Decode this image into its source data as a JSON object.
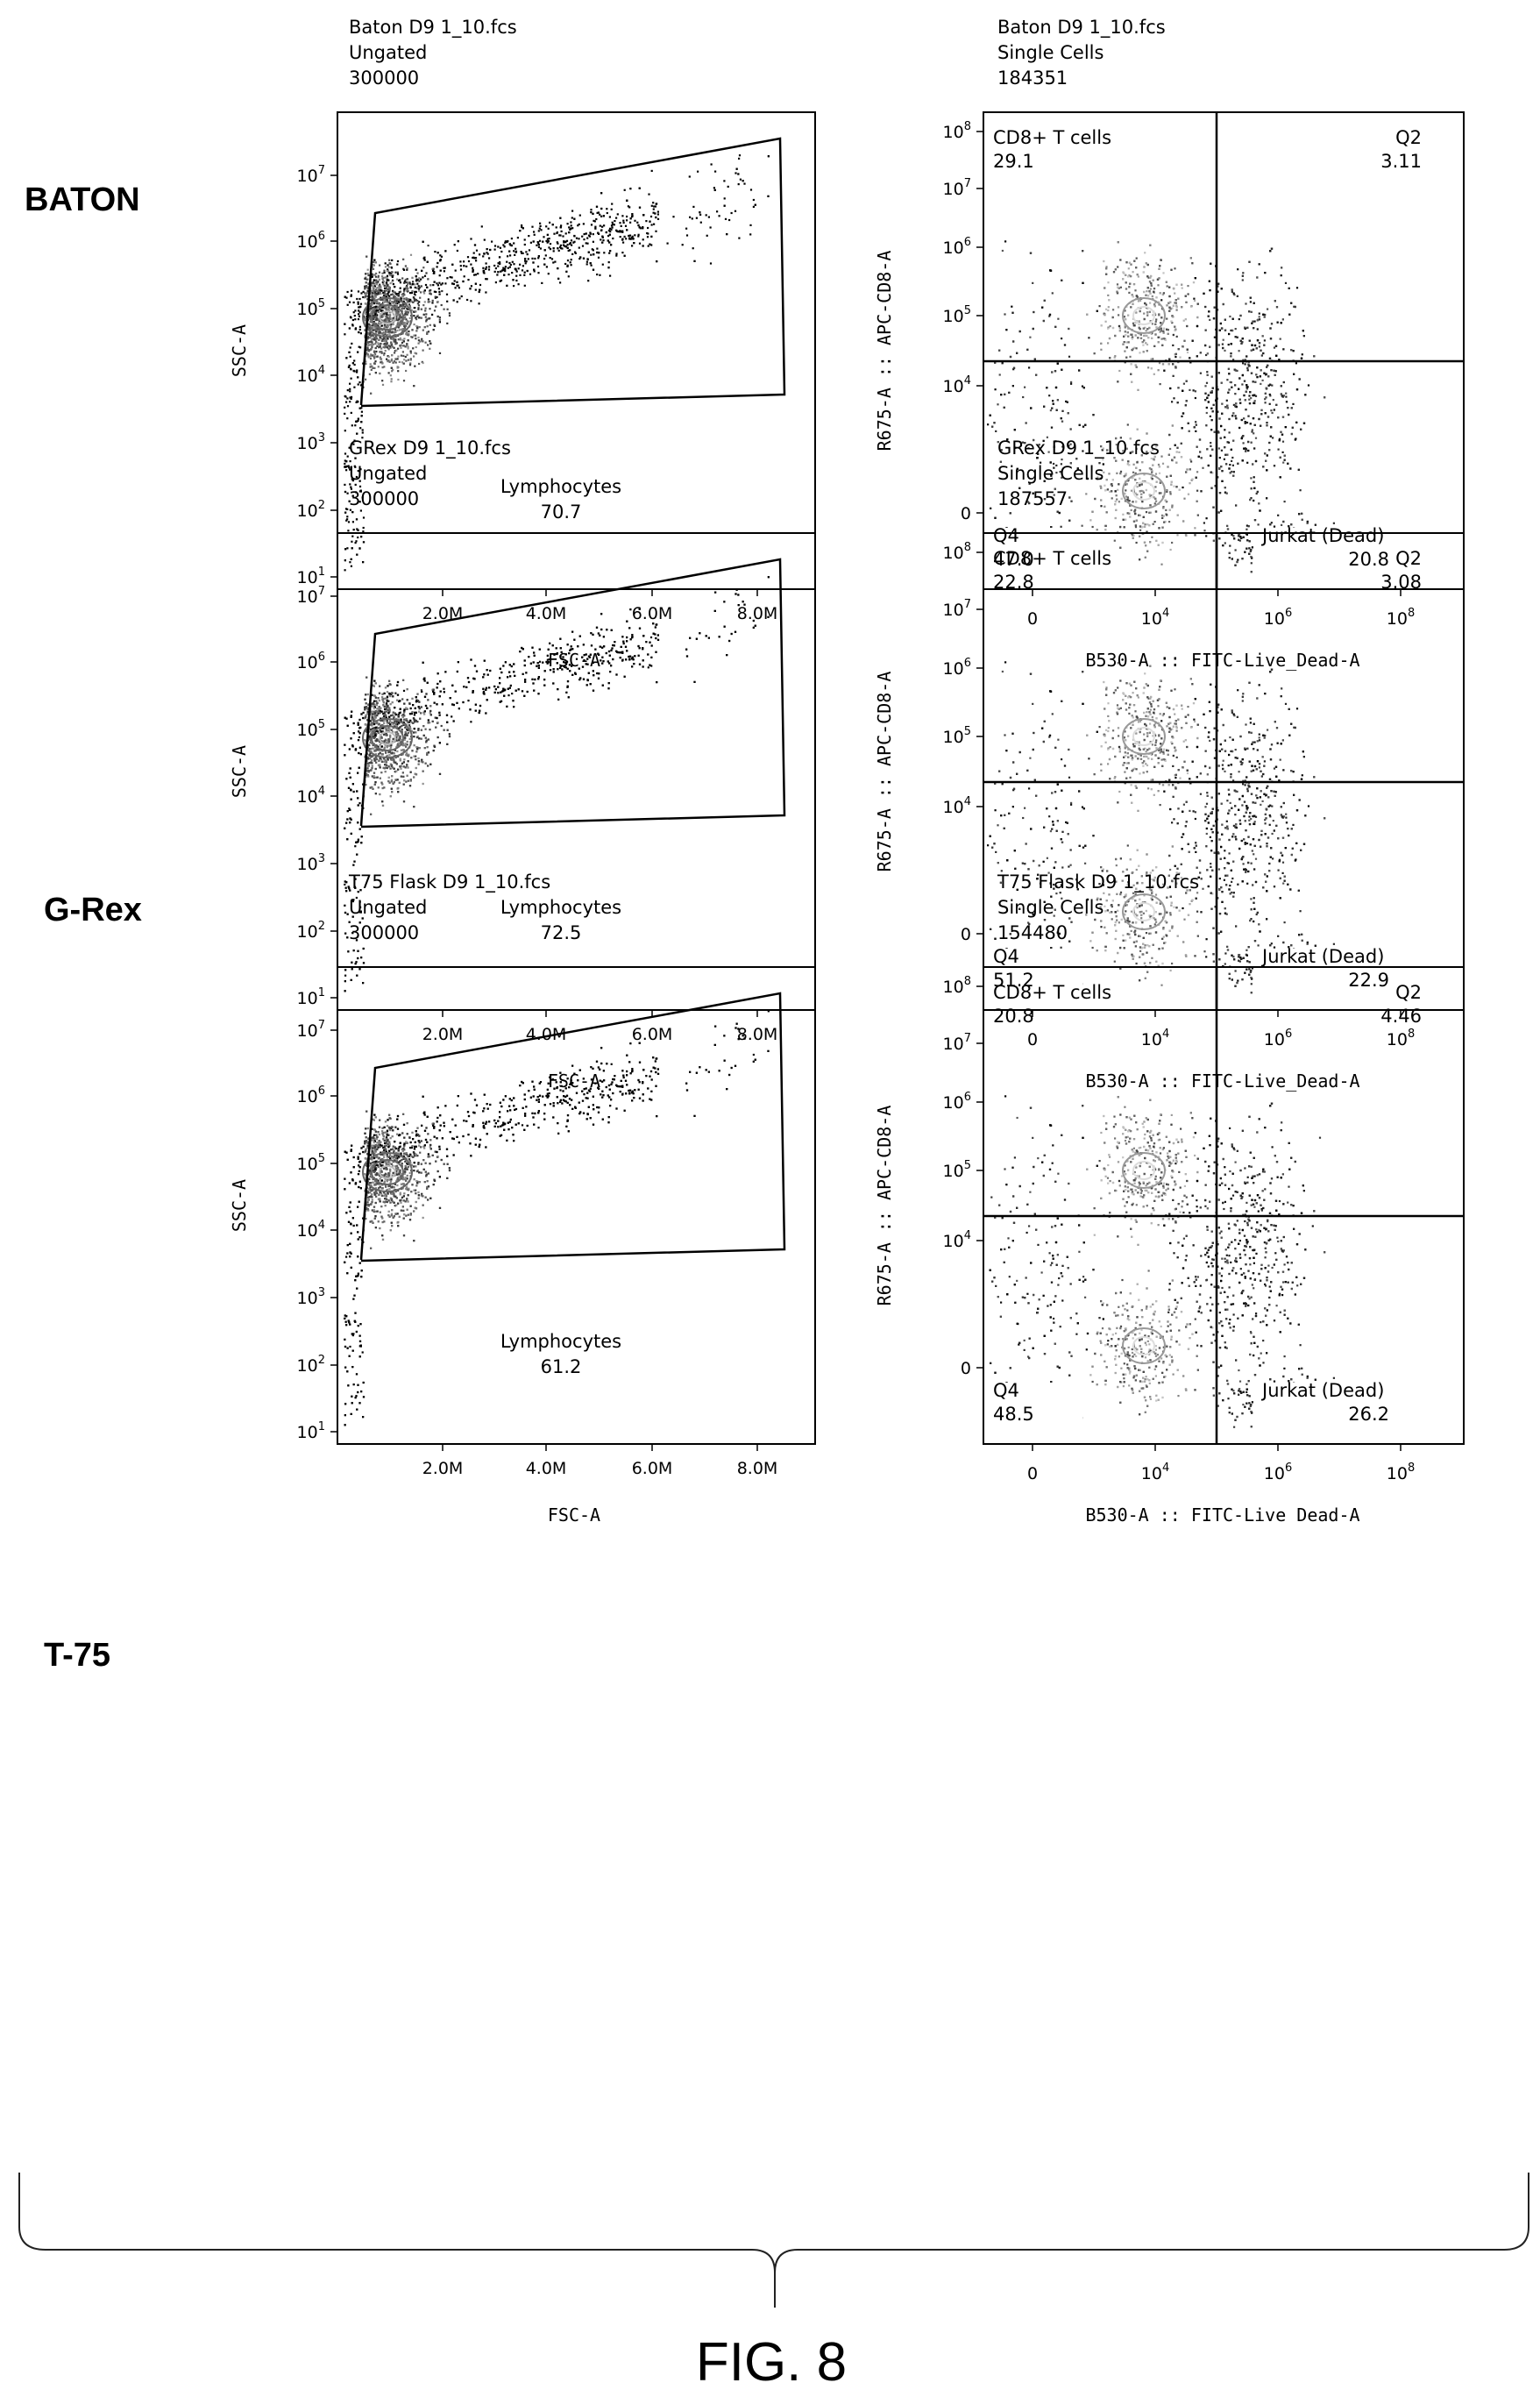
{
  "figure_label": "FIG. 8",
  "rows": [
    {
      "label": "BATON"
    },
    {
      "label": "G-Rex"
    },
    {
      "label": "T-75"
    }
  ],
  "chart_data": [
    {
      "type": "scatter",
      "row": "BATON",
      "title_lines": [
        "Baton D9 1_10.fcs",
        "Ungated",
        "300000"
      ],
      "xlabel": "FSC-A",
      "ylabel": "SSC-A",
      "x_ticks": [
        "2.0M",
        "4.0M",
        "6.0M",
        "8.0M"
      ],
      "y_ticks": [
        {
          "base": "10",
          "exp": "7"
        },
        {
          "base": "10",
          "exp": "6"
        },
        {
          "base": "10",
          "exp": "5"
        },
        {
          "base": "10",
          "exp": "4"
        },
        {
          "base": "10",
          "exp": "3"
        },
        {
          "base": "10",
          "exp": "2"
        },
        {
          "base": "10",
          "exp": "1"
        }
      ],
      "gate": {
        "name": "Lymphocytes",
        "percent": "70.7"
      }
    },
    {
      "type": "scatter",
      "row": "BATON",
      "title_lines": [
        "Baton D9 1_10.fcs",
        "Single Cells",
        "184351"
      ],
      "xlabel": "B530-A :: FITC-Live_Dead-A",
      "ylabel": "R675-A :: APC-CD8-A",
      "x_ticks": [
        {
          "base": "0",
          "exp": ""
        },
        {
          "base": "10",
          "exp": "4"
        },
        {
          "base": "10",
          "exp": "6"
        },
        {
          "base": "10",
          "exp": "8"
        }
      ],
      "y_ticks": [
        {
          "base": "10",
          "exp": "8"
        },
        {
          "base": "10",
          "exp": "7"
        },
        {
          "base": "10",
          "exp": "6"
        },
        {
          "base": "10",
          "exp": "5"
        },
        {
          "base": "10",
          "exp": "4"
        },
        {
          "base": "0",
          "exp": ""
        }
      ],
      "quadrants": {
        "ul": {
          "name": "CD8+ T cells",
          "percent": "29.1"
        },
        "ur": {
          "name": "Q2",
          "percent": "3.11"
        },
        "ll": {
          "name": "Q4",
          "percent": "47.0"
        },
        "lr": {
          "name": "Jurkat (Dead)",
          "percent": "20.8"
        }
      }
    },
    {
      "type": "scatter",
      "row": "G-Rex",
      "title_lines": [
        "GRex D9 1_10.fcs",
        "Ungated",
        "300000"
      ],
      "xlabel": "FSC-A",
      "ylabel": "SSC-A",
      "x_ticks": [
        "2.0M",
        "4.0M",
        "6.0M",
        "8.0M"
      ],
      "y_ticks": [
        {
          "base": "10",
          "exp": "7"
        },
        {
          "base": "10",
          "exp": "6"
        },
        {
          "base": "10",
          "exp": "5"
        },
        {
          "base": "10",
          "exp": "4"
        },
        {
          "base": "10",
          "exp": "3"
        },
        {
          "base": "10",
          "exp": "2"
        },
        {
          "base": "10",
          "exp": "1"
        }
      ],
      "gate": {
        "name": "Lymphocytes",
        "percent": "72.5"
      }
    },
    {
      "type": "scatter",
      "row": "G-Rex",
      "title_lines": [
        "GRex D9 1_10.fcs",
        "Single Cells",
        "187557"
      ],
      "xlabel": "B530-A :: FITC-Live_Dead-A",
      "ylabel": "R675-A :: APC-CD8-A",
      "x_ticks": [
        {
          "base": "0",
          "exp": ""
        },
        {
          "base": "10",
          "exp": "4"
        },
        {
          "base": "10",
          "exp": "6"
        },
        {
          "base": "10",
          "exp": "8"
        }
      ],
      "y_ticks": [
        {
          "base": "10",
          "exp": "8"
        },
        {
          "base": "10",
          "exp": "7"
        },
        {
          "base": "10",
          "exp": "6"
        },
        {
          "base": "10",
          "exp": "5"
        },
        {
          "base": "10",
          "exp": "4"
        },
        {
          "base": "0",
          "exp": ""
        }
      ],
      "quadrants": {
        "ul": {
          "name": "CD8+ T cells",
          "percent": "22.8"
        },
        "ur": {
          "name": "Q2",
          "percent": "3.08"
        },
        "ll": {
          "name": "Q4",
          "percent": "51.2"
        },
        "lr": {
          "name": "Jurkat (Dead)",
          "percent": "22.9"
        }
      }
    },
    {
      "type": "scatter",
      "row": "T-75",
      "title_lines": [
        "T75 Flask D9 1_10.fcs",
        "Ungated",
        "300000"
      ],
      "xlabel": "FSC-A",
      "ylabel": "SSC-A",
      "x_ticks": [
        "2.0M",
        "4.0M",
        "6.0M",
        "8.0M"
      ],
      "y_ticks": [
        {
          "base": "10",
          "exp": "7"
        },
        {
          "base": "10",
          "exp": "6"
        },
        {
          "base": "10",
          "exp": "5"
        },
        {
          "base": "10",
          "exp": "4"
        },
        {
          "base": "10",
          "exp": "3"
        },
        {
          "base": "10",
          "exp": "2"
        },
        {
          "base": "10",
          "exp": "1"
        }
      ],
      "gate": {
        "name": "Lymphocytes",
        "percent": "61.2"
      }
    },
    {
      "type": "scatter",
      "row": "T-75",
      "title_lines": [
        "T75 Flask D9 1_10.fcs",
        "Single Cells",
        "154480"
      ],
      "xlabel": "B530-A :: FITC-Live Dead-A",
      "ylabel": "R675-A :: APC-CD8-A",
      "x_ticks": [
        {
          "base": "0",
          "exp": ""
        },
        {
          "base": "10",
          "exp": "4"
        },
        {
          "base": "10",
          "exp": "6"
        },
        {
          "base": "10",
          "exp": "8"
        }
      ],
      "y_ticks": [
        {
          "base": "10",
          "exp": "8"
        },
        {
          "base": "10",
          "exp": "7"
        },
        {
          "base": "10",
          "exp": "6"
        },
        {
          "base": "10",
          "exp": "5"
        },
        {
          "base": "10",
          "exp": "4"
        },
        {
          "base": "0",
          "exp": ""
        }
      ],
      "quadrants": {
        "ul": {
          "name": "CD8+ T cells",
          "percent": "20.8"
        },
        "ur": {
          "name": "Q2",
          "percent": "4.46"
        },
        "ll": {
          "name": "Q4",
          "percent": "48.5"
        },
        "lr": {
          "name": "Jurkat (Dead)",
          "percent": "26.2"
        }
      }
    }
  ]
}
